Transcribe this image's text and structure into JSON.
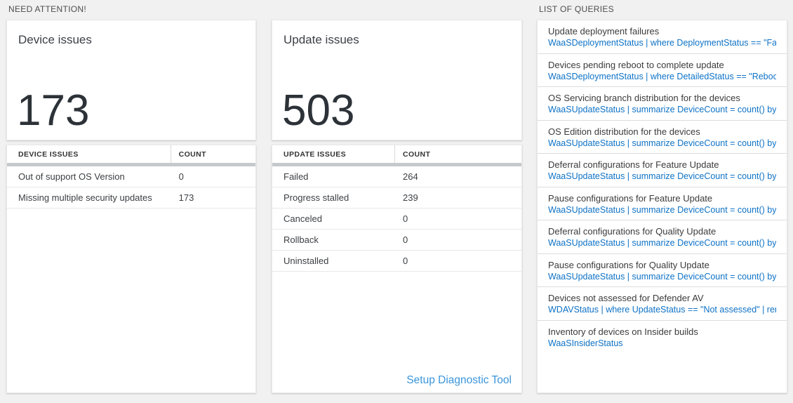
{
  "need_attention": {
    "header": "NEED ATTENTION!",
    "tiles": [
      {
        "title": "Device issues",
        "value": "173",
        "table": {
          "headers": [
            "DEVICE ISSUES",
            "COUNT"
          ],
          "rows": [
            {
              "label": "Out of support OS Version",
              "count": "0"
            },
            {
              "label": "Missing multiple security updates",
              "count": "173"
            }
          ]
        }
      },
      {
        "title": "Update issues",
        "value": "503",
        "table": {
          "headers": [
            "UPDATE ISSUES",
            "COUNT"
          ],
          "rows": [
            {
              "label": "Failed",
              "count": "264"
            },
            {
              "label": "Progress stalled",
              "count": "239"
            },
            {
              "label": "Canceled",
              "count": "0"
            },
            {
              "label": "Rollback",
              "count": "0"
            },
            {
              "label": "Uninstalled",
              "count": "0"
            }
          ]
        },
        "footer_link": "Setup Diagnostic Tool"
      }
    ]
  },
  "queries": {
    "header": "LIST OF QUERIES",
    "items": [
      {
        "title": "Update deployment failures",
        "query": "WaaSDeploymentStatus | where DeploymentStatus == \"Failed\" |..."
      },
      {
        "title": "Devices pending reboot to complete update",
        "query": "WaaSDeploymentStatus | where DetailedStatus == \"Reboot pend..."
      },
      {
        "title": "OS Servicing branch distribution for the devices",
        "query": "WaaSUpdateStatus | summarize DeviceCount = count() by OSSer..."
      },
      {
        "title": "OS Edition distribution for the devices",
        "query": "WaaSUpdateStatus | summarize DeviceCount = count() by OSEdit..."
      },
      {
        "title": "Deferral configurations for Feature Update",
        "query": "WaaSUpdateStatus | summarize DeviceCount = count() by Featur..."
      },
      {
        "title": "Pause configurations for Feature Update",
        "query": "WaaSUpdateStatus | summarize DeviceCount = count() by Featur..."
      },
      {
        "title": "Deferral configurations for Quality Update",
        "query": "WaaSUpdateStatus | summarize DeviceCount = count() by Qualit..."
      },
      {
        "title": "Pause configurations for Quality Update",
        "query": "WaaSUpdateStatus | summarize DeviceCount = count() by Qualit..."
      },
      {
        "title": "Devices not assessed for Defender AV",
        "query": "WDAVStatus | where UpdateStatus == \"Not assessed\" | render ta..."
      },
      {
        "title": "Inventory of devices on Insider builds",
        "query": "WaaSInsiderStatus"
      }
    ]
  },
  "colors": {
    "page_bg": "#f1f1f1",
    "card_bg": "#ffffff",
    "query_link_blue": "#0e72c6",
    "action_link_blue": "#3a96dd",
    "big_number": "#2c3238",
    "header_band": "#c6c9cb"
  }
}
